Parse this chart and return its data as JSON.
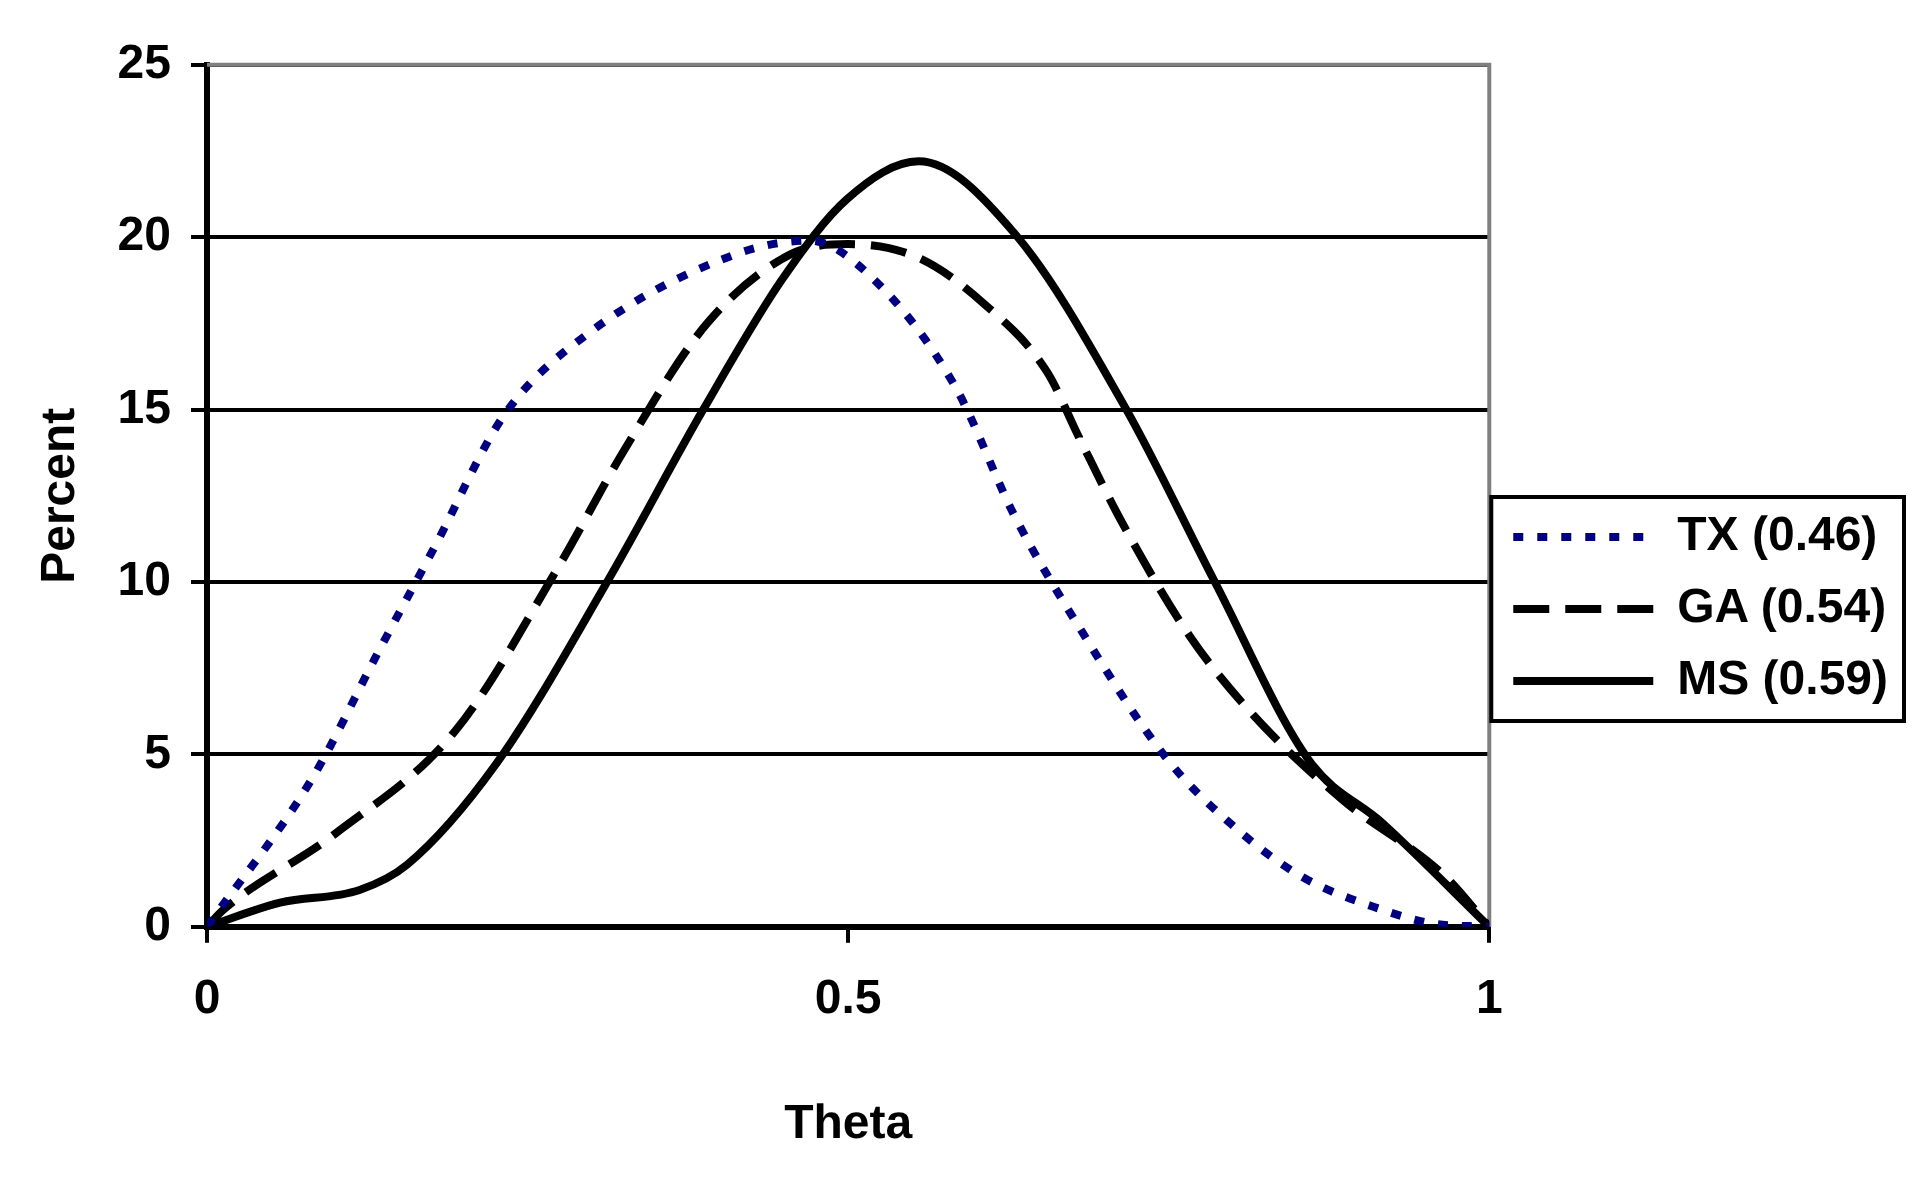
{
  "chart_data": {
    "type": "line",
    "xlabel": "Theta",
    "ylabel": "Percent",
    "xlim": [
      0,
      1
    ],
    "xticks": [
      0,
      0.5,
      1
    ],
    "ylim": [
      0,
      25
    ],
    "yticks": [
      0,
      5,
      10,
      15,
      20,
      25
    ],
    "grid": "y",
    "legend": "right",
    "marker": "none",
    "series": [
      {
        "name": "TX (0.46)",
        "color": "#000080",
        "line_style": "dotted",
        "x": [
          0,
          0.082,
          0.134,
          0.178,
          0.231,
          0.297,
          0.412,
          0.47,
          0.518,
          0.583,
          0.63,
          0.68,
          0.748,
          0.798,
          0.854,
          0.916,
          0.955,
          1
        ],
        "values": [
          0,
          4.3,
          8.0,
          11.05,
          14.8,
          17.2,
          19.5,
          19.9,
          18.85,
          15.7,
          11.9,
          8.7,
          4.9,
          3.0,
          1.45,
          0.5,
          0.1,
          0
        ]
      },
      {
        "name": "GA (0.54)",
        "color": "#000000",
        "line_style": "dashed",
        "x": [
          0,
          0.013,
          0.1,
          0.194,
          0.275,
          0.325,
          0.39,
          0.455,
          0.5,
          0.555,
          0.605,
          0.655,
          0.68,
          0.714,
          0.767,
          0.817,
          0.885,
          0.966,
          1
        ],
        "values": [
          0,
          0.5,
          2.7,
          5.7,
          10.5,
          13.8,
          17.5,
          19.5,
          19.8,
          19.4,
          18.1,
          16.1,
          14.2,
          11.7,
          8.4,
          6.1,
          3.7,
          1.45,
          0
        ]
      },
      {
        "name": "MS (0.59)",
        "color": "#000000",
        "line_style": "solid",
        "x": [
          0,
          0.057,
          0.119,
          0.156,
          0.225,
          0.312,
          0.387,
          0.449,
          0.499,
          0.555,
          0.63,
          0.717,
          0.786,
          0.86,
          0.917,
          1
        ],
        "values": [
          0,
          0.7,
          1.07,
          1.8,
          4.7,
          10.0,
          15.0,
          18.8,
          21.1,
          22.2,
          20.1,
          15.0,
          10.0,
          4.8,
          3.0,
          0
        ]
      }
    ]
  }
}
